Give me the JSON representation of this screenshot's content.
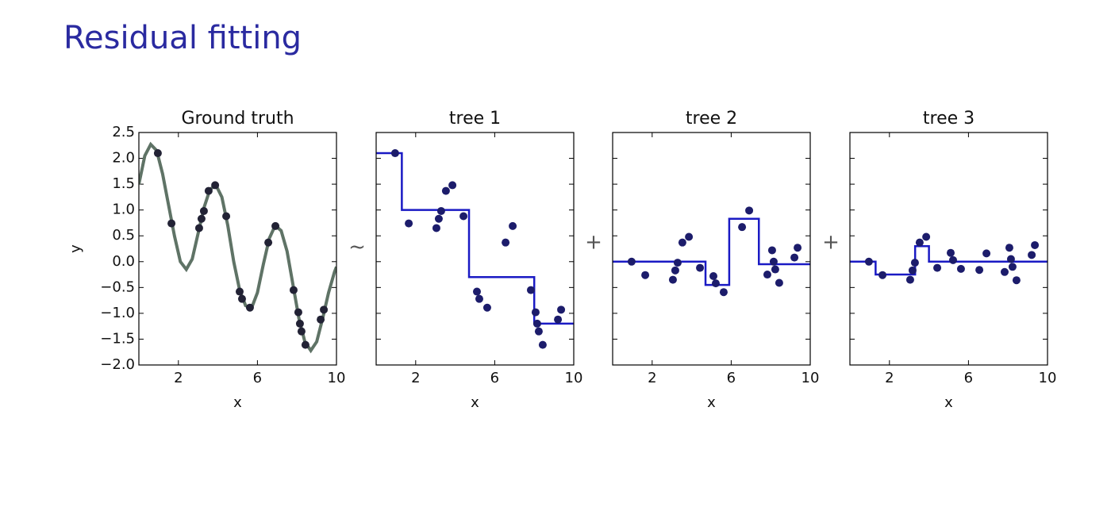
{
  "title": "Residual fitting",
  "operators": [
    "~",
    "+",
    "+"
  ],
  "chart_data": [
    {
      "type": "line",
      "title": "Ground truth",
      "xlabel": "x",
      "ylabel": "y",
      "xlim": [
        0,
        10
      ],
      "ylim": [
        -2,
        2.5
      ],
      "xticks": [
        2,
        6,
        10
      ],
      "yticks": [
        {
          "value": -2,
          "label": "−2.0"
        },
        {
          "value": -1.5,
          "label": "−1.5"
        },
        {
          "value": -1,
          "label": "−1.0"
        },
        {
          "value": -0.5,
          "label": "−0.5"
        },
        {
          "value": 0,
          "label": "0.0"
        },
        0.5,
        {
          "value": 1,
          "label": "1.0"
        },
        1.5,
        {
          "value": 2,
          "label": "2.0"
        },
        2.5
      ],
      "ytick_labels": true,
      "series": [
        {
          "type": "line",
          "color": "#5f7366",
          "x": [
            0,
            0.3,
            0.6,
            0.9,
            1.2,
            1.5,
            1.8,
            2.1,
            2.4,
            2.7,
            3.0,
            3.3,
            3.6,
            3.9,
            4.2,
            4.5,
            4.8,
            5.1,
            5.4,
            5.7,
            6.0,
            6.3,
            6.6,
            6.9,
            7.2,
            7.5,
            7.8,
            8.1,
            8.4,
            8.7,
            9.0,
            9.3,
            9.6,
            9.9,
            10
          ],
          "values": [
            1.5,
            2.05,
            2.27,
            2.15,
            1.7,
            1.1,
            0.5,
            0.0,
            -0.15,
            0.05,
            0.55,
            1.05,
            1.4,
            1.48,
            1.25,
            0.7,
            0.0,
            -0.55,
            -0.85,
            -0.9,
            -0.6,
            -0.05,
            0.45,
            0.7,
            0.6,
            0.2,
            -0.45,
            -1.1,
            -1.55,
            -1.72,
            -1.55,
            -1.1,
            -0.6,
            -0.2,
            -0.1
          ]
        },
        {
          "type": "scatter",
          "color": "#222235",
          "x": [
            0.96,
            1.65,
            3.05,
            3.17,
            3.29,
            3.53,
            3.86,
            4.42,
            5.1,
            5.22,
            5.62,
            6.55,
            6.91,
            7.83,
            8.07,
            8.15,
            8.23,
            8.43,
            9.2,
            9.36
          ],
          "values": [
            2.1,
            0.74,
            0.65,
            0.83,
            0.98,
            1.37,
            1.48,
            0.88,
            -0.58,
            -0.72,
            -0.89,
            0.37,
            0.69,
            -0.55,
            -0.98,
            -1.2,
            -1.35,
            -1.61,
            -1.12,
            -0.93
          ]
        }
      ]
    },
    {
      "type": "line",
      "title": "tree 1",
      "xlabel": "x",
      "xlim": [
        0,
        10
      ],
      "ylim": [
        -2,
        2.5
      ],
      "xticks": [
        2,
        6,
        10
      ],
      "yticks": [
        -2,
        -1.5,
        -1,
        -0.5,
        0,
        0.5,
        1,
        1.5,
        2,
        2.5
      ],
      "ytick_labels": false,
      "series": [
        {
          "type": "line",
          "color": "#1a1ac4",
          "x": [
            0,
            1.3,
            1.3,
            4.7,
            4.7,
            8.0,
            8.0,
            10
          ],
          "values": [
            2.1,
            2.1,
            1.0,
            1.0,
            -0.3,
            -0.3,
            -1.2,
            -1.2
          ]
        },
        {
          "type": "scatter",
          "color": "#1c1c6b",
          "x": [
            0.96,
            1.65,
            3.05,
            3.17,
            3.29,
            3.53,
            3.86,
            4.42,
            5.1,
            5.22,
            5.62,
            6.55,
            6.91,
            7.83,
            8.07,
            8.15,
            8.23,
            8.43,
            9.2,
            9.36
          ],
          "values": [
            2.1,
            0.74,
            0.65,
            0.83,
            0.98,
            1.37,
            1.48,
            0.88,
            -0.58,
            -0.72,
            -0.89,
            0.37,
            0.69,
            -0.55,
            -0.98,
            -1.2,
            -1.35,
            -1.61,
            -1.12,
            -0.93
          ]
        }
      ]
    },
    {
      "type": "line",
      "title": "tree 2",
      "xlabel": "x",
      "xlim": [
        0,
        10
      ],
      "ylim": [
        -2,
        2.5
      ],
      "xticks": [
        2,
        6,
        10
      ],
      "yticks": [
        -2,
        -1.5,
        -1,
        -0.5,
        0,
        0.5,
        1,
        1.5,
        2,
        2.5
      ],
      "ytick_labels": false,
      "series": [
        {
          "type": "line",
          "color": "#1a1ac4",
          "x": [
            0,
            4.7,
            4.7,
            5.9,
            5.9,
            7.4,
            7.4,
            10
          ],
          "values": [
            0,
            0,
            -0.45,
            -0.45,
            0.83,
            0.83,
            -0.05,
            -0.05
          ]
        },
        {
          "type": "scatter",
          "color": "#1c1c6b",
          "x": [
            0.96,
            1.65,
            3.05,
            3.17,
            3.29,
            3.53,
            3.86,
            4.42,
            5.1,
            5.22,
            5.62,
            6.55,
            6.91,
            7.83,
            8.07,
            8.15,
            8.23,
            8.43,
            9.2,
            9.36
          ],
          "values": [
            0,
            -0.26,
            -0.35,
            -0.17,
            -0.02,
            0.37,
            0.48,
            -0.12,
            -0.28,
            -0.42,
            -0.59,
            0.67,
            0.99,
            -0.25,
            0.22,
            0,
            -0.15,
            -0.41,
            0.08,
            0.27
          ]
        }
      ]
    },
    {
      "type": "line",
      "title": "tree 3",
      "xlabel": "x",
      "xlim": [
        0,
        10
      ],
      "ylim": [
        -2,
        2.5
      ],
      "xticks": [
        2,
        6,
        10
      ],
      "yticks": [
        -2,
        -1.5,
        -1,
        -0.5,
        0,
        0.5,
        1,
        1.5,
        2,
        2.5
      ],
      "ytick_labels": false,
      "series": [
        {
          "type": "line",
          "color": "#1a1ac4",
          "x": [
            0,
            1.3,
            1.3,
            3.3,
            3.3,
            4.0,
            4.0,
            10
          ],
          "values": [
            0,
            0,
            -0.25,
            -0.25,
            0.3,
            0.3,
            0,
            0
          ]
        },
        {
          "type": "scatter",
          "color": "#1c1c6b",
          "x": [
            0.96,
            1.65,
            3.05,
            3.17,
            3.29,
            3.53,
            3.86,
            4.42,
            5.1,
            5.22,
            5.62,
            6.55,
            6.91,
            7.83,
            8.07,
            8.15,
            8.23,
            8.43,
            9.2,
            9.36
          ],
          "values": [
            0,
            -0.26,
            -0.35,
            -0.17,
            -0.02,
            0.37,
            0.48,
            -0.12,
            0.17,
            0.03,
            -0.14,
            -0.16,
            0.16,
            -0.2,
            0.27,
            0.05,
            -0.1,
            -0.36,
            0.13,
            0.32
          ]
        }
      ]
    }
  ]
}
